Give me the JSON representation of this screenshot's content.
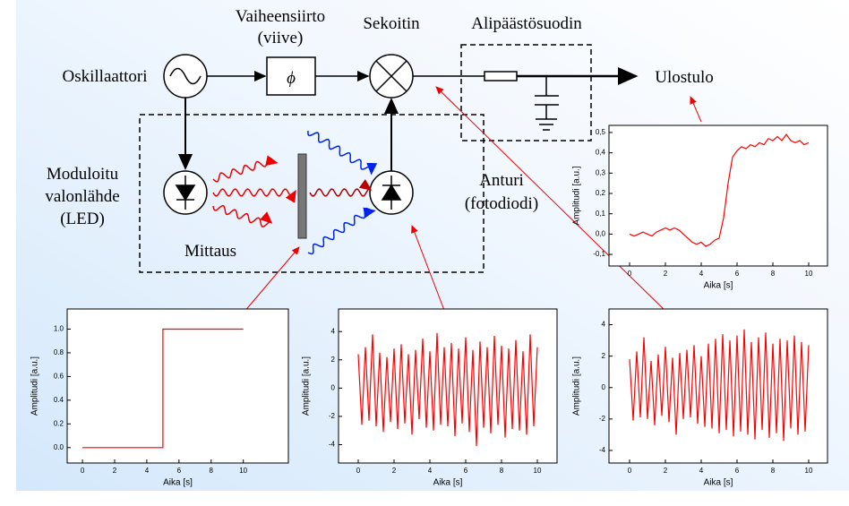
{
  "labels": {
    "phase_shift": "Vaiheensiirto",
    "phase_shift_note": "(viive)",
    "phase_symbol": "ϕ",
    "mixer": "Sekoitin",
    "lowpass": "Alipäästösuodin",
    "oscillator": "Oskillaattori",
    "output": "Ulostulo",
    "source_1": "Moduloitu",
    "source_2": "valonlähde",
    "source_3": "(LED)",
    "measurement": "Mittaus",
    "sensor_1": "Anturi",
    "sensor_2": "(fotodiodi)"
  },
  "chart_data": [
    {
      "type": "line",
      "xlabel": "Aika [s]",
      "ylabel": "Amplitudi [a.u.]",
      "color": "#ff0000",
      "x": [
        0,
        5,
        5,
        10
      ],
      "values": [
        0,
        0,
        1,
        1
      ],
      "xlim": [
        -0.95,
        12.8
      ],
      "ylim": [
        -0.13,
        1.17
      ],
      "xticks": [
        0,
        2,
        4,
        6,
        8,
        10
      ],
      "yticks": [
        {
          "value": 0,
          "label": "0.0"
        },
        0.2,
        0.4,
        0.6,
        0.8,
        {
          "value": 1,
          "label": "1.0"
        }
      ]
    },
    {
      "type": "line",
      "xlabel": "Aika [s]",
      "ylabel": "Amplitudi [a.u.]",
      "color": "#ff0000",
      "x": [
        0,
        0.2,
        0.4,
        0.6,
        0.8,
        1,
        1.2,
        1.4,
        1.6,
        1.8,
        2,
        2.2,
        2.4,
        2.6,
        2.8,
        3,
        3.2,
        3.4,
        3.6,
        3.8,
        4,
        4.2,
        4.4,
        4.6,
        4.8,
        5,
        5.2,
        5.4,
        5.6,
        5.8,
        6,
        6.2,
        6.4,
        6.6,
        6.8,
        7,
        7.2,
        7.4,
        7.6,
        7.8,
        8,
        8.2,
        8.4,
        8.6,
        8.8,
        9,
        9.2,
        9.4,
        9.6,
        9.8,
        10
      ],
      "values": [
        2.4,
        -2.6,
        2.9,
        -2.3,
        3.8,
        -2.7,
        2.5,
        -3.1,
        2.2,
        -2.4,
        2.8,
        -2.9,
        3.1,
        -2.5,
        2.4,
        -3.3,
        2.7,
        -2.2,
        3.5,
        -2.8,
        2.6,
        -3.0,
        3.9,
        -2.6,
        2.9,
        -2.7,
        3.2,
        -3.4,
        2.8,
        -2.5,
        3.6,
        -3.1,
        2.7,
        -4.1,
        3.3,
        -2.8,
        2.9,
        -3.2,
        3.7,
        -2.6,
        3.0,
        -3.5,
        2.8,
        -2.9,
        3.4,
        -3.0,
        2.6,
        -3.3,
        3.8,
        -2.7,
        2.9
      ],
      "xlim": [
        -1.1,
        11.1
      ],
      "ylim": [
        -5.3,
        5.6
      ],
      "xticks": [
        0,
        2,
        4,
        6,
        8,
        10
      ],
      "yticks": [
        -4,
        -2,
        0,
        2,
        4
      ]
    },
    {
      "type": "line",
      "xlabel": "Aika [s]",
      "ylabel": "Amplitudi [a.u.]",
      "color": "#ff0000",
      "x": [
        0,
        0.2,
        0.4,
        0.6,
        0.8,
        1,
        1.2,
        1.4,
        1.6,
        1.8,
        2,
        2.2,
        2.4,
        2.6,
        2.8,
        3,
        3.2,
        3.4,
        3.6,
        3.8,
        4,
        4.2,
        4.4,
        4.6,
        4.8,
        5,
        5.2,
        5.4,
        5.6,
        5.8,
        6,
        6.2,
        6.4,
        6.6,
        6.8,
        7,
        7.2,
        7.4,
        7.6,
        7.8,
        8,
        8.2,
        8.4,
        8.6,
        8.8,
        9,
        9.2,
        9.4,
        9.6,
        9.8,
        10
      ],
      "values": [
        1.8,
        -2.1,
        2.3,
        -1.9,
        3.2,
        -2.0,
        1.7,
        -2.4,
        2.1,
        -1.8,
        2.6,
        -2.2,
        1.9,
        -3.0,
        2.2,
        -2.0,
        2.4,
        -1.9,
        2.7,
        -2.3,
        2.0,
        -2.5,
        2.8,
        -2.6,
        3.1,
        -2.9,
        3.4,
        -2.7,
        3.0,
        -3.1,
        3.3,
        -2.8,
        3.7,
        -3.0,
        2.9,
        -3.3,
        3.2,
        -2.7,
        3.5,
        -3.2,
        2.8,
        -2.9,
        3.1,
        -3.4,
        3.0,
        -2.6,
        3.3,
        -3.0,
        2.9,
        -2.8,
        2.7
      ],
      "xlim": [
        -1.15,
        11.05
      ],
      "ylim": [
        -4.8,
        5.0
      ],
      "xticks": [
        0,
        2,
        4,
        6,
        8,
        10
      ],
      "yticks": [
        -4,
        -2,
        0,
        2,
        4
      ]
    },
    {
      "type": "line",
      "xlabel": "Aika [s]",
      "ylabel": "Amplitudi [a.u.]",
      "color": "#ff0000",
      "x": [
        0,
        0.25,
        0.5,
        0.75,
        1,
        1.25,
        1.5,
        1.75,
        2,
        2.25,
        2.5,
        2.75,
        3,
        3.25,
        3.5,
        3.75,
        4,
        4.25,
        4.5,
        4.75,
        5,
        5.25,
        5.5,
        5.75,
        6,
        6.25,
        6.5,
        6.75,
        7,
        7.25,
        7.5,
        7.75,
        8,
        8.25,
        8.5,
        8.75,
        9,
        9.25,
        9.5,
        9.75,
        10
      ],
      "values": [
        0,
        -0.01,
        0.0,
        0.01,
        0.0,
        -0.01,
        0.01,
        0.02,
        0.03,
        0.02,
        0.03,
        0.02,
        0.0,
        -0.02,
        -0.04,
        -0.05,
        -0.04,
        -0.06,
        -0.05,
        -0.03,
        -0.02,
        0.08,
        0.25,
        0.38,
        0.41,
        0.43,
        0.42,
        0.44,
        0.43,
        0.45,
        0.44,
        0.47,
        0.46,
        0.48,
        0.46,
        0.49,
        0.46,
        0.45,
        0.46,
        0.44,
        0.45
      ],
      "xlim": [
        -1.15,
        11.05
      ],
      "ylim": [
        -0.157,
        0.535
      ],
      "xticks": [
        0,
        2,
        4,
        6,
        8,
        10
      ],
      "yticks": [
        {
          "value": -0.1,
          "label": "-0,1"
        },
        {
          "value": 0,
          "label": "0,0"
        },
        {
          "value": 0.1,
          "label": "0,1"
        },
        {
          "value": 0.2,
          "label": "0,2"
        },
        {
          "value": 0.3,
          "label": "0,3"
        },
        {
          "value": 0.4,
          "label": "0,4"
        },
        {
          "value": 0.5,
          "label": "0,5"
        }
      ]
    }
  ]
}
